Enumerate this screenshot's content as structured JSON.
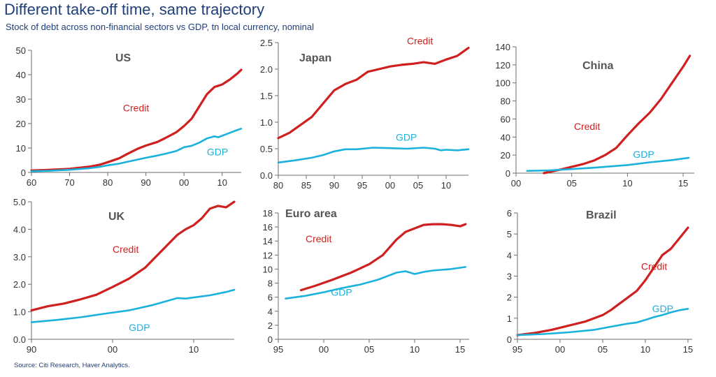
{
  "title": "Different take-off time, same trajectory",
  "subtitle": "Stock of debt across non-financial sectors vs GDP, tn local currency, nominal",
  "source": "Source: Citi Research, Haver Analytics.",
  "colors": {
    "credit": "#d01f1f",
    "gdp": "#1ab2dc"
  },
  "chart_data": [
    {
      "type": "line",
      "title": "US",
      "xlim": [
        1960,
        2015
      ],
      "ylim": [
        0,
        50
      ],
      "xticks": [
        1960,
        1970,
        1980,
        1990,
        2000,
        2010
      ],
      "xticklabels": [
        "60",
        "70",
        "80",
        "90",
        "00",
        "10"
      ],
      "yticks": [
        0,
        10,
        20,
        30,
        40,
        50
      ],
      "yticklabels": [
        "0",
        "10",
        "20",
        "30",
        "40",
        "50"
      ],
      "series": [
        {
          "name": "Credit",
          "x": [
            1960,
            1965,
            1970,
            1975,
            1978,
            1980,
            1983,
            1985,
            1988,
            1990,
            1993,
            1995,
            1998,
            2000,
            2002,
            2004,
            2006,
            2008,
            2009,
            2010,
            2012,
            2014,
            2015
          ],
          "y": [
            0.8,
            1.1,
            1.5,
            2.3,
            3.2,
            4.2,
            5.8,
            7.5,
            9.8,
            11,
            12.5,
            14,
            16.5,
            19,
            22,
            27,
            32,
            35,
            35.5,
            36,
            38,
            40.5,
            42
          ]
        },
        {
          "name": "GDP",
          "x": [
            1960,
            1965,
            1970,
            1975,
            1978,
            1980,
            1983,
            1985,
            1988,
            1990,
            1993,
            1995,
            1998,
            2000,
            2002,
            2004,
            2006,
            2008,
            2009,
            2010,
            2012,
            2014,
            2015
          ],
          "y": [
            0.5,
            0.7,
            1.1,
            1.7,
            2.3,
            2.9,
            3.6,
            4.3,
            5.3,
            6,
            6.9,
            7.6,
            8.8,
            10.3,
            10.9,
            12.2,
            13.9,
            14.8,
            14.4,
            15,
            16.2,
            17.4,
            17.9
          ]
        }
      ]
    },
    {
      "type": "line",
      "title": "Japan",
      "xlim": [
        1980,
        2014
      ],
      "ylim": [
        0,
        2.5
      ],
      "xticks": [
        1980,
        1985,
        1990,
        1995,
        2000,
        2005,
        2010
      ],
      "xticklabels": [
        "80",
        "85",
        "90",
        "95",
        "00",
        "05",
        "10"
      ],
      "yticks": [
        0,
        0.5,
        1,
        1.5,
        2,
        2.5
      ],
      "yticklabels": [
        "0.0",
        "0.5",
        "1.0",
        "1.5",
        "2.0",
        "2.5"
      ],
      "series": [
        {
          "name": "Credit",
          "x": [
            1980,
            1982,
            1984,
            1986,
            1988,
            1990,
            1992,
            1994,
            1996,
            1998,
            2000,
            2002,
            2004,
            2006,
            2008,
            2010,
            2012,
            2014
          ],
          "y": [
            0.7,
            0.8,
            0.95,
            1.1,
            1.35,
            1.6,
            1.72,
            1.8,
            1.95,
            2.0,
            2.05,
            2.08,
            2.1,
            2.13,
            2.1,
            2.18,
            2.25,
            2.4
          ]
        },
        {
          "name": "GDP",
          "x": [
            1980,
            1983,
            1986,
            1988,
            1990,
            1992,
            1994,
            1997,
            2000,
            2003,
            2006,
            2008,
            2009,
            2010,
            2012,
            2014
          ],
          "y": [
            0.24,
            0.28,
            0.33,
            0.38,
            0.45,
            0.49,
            0.49,
            0.52,
            0.51,
            0.5,
            0.52,
            0.5,
            0.47,
            0.48,
            0.47,
            0.49
          ]
        }
      ]
    },
    {
      "type": "line",
      "title": "China",
      "xlim": [
        2000,
        2016
      ],
      "ylim": [
        0,
        140
      ],
      "xticks": [
        2000,
        2005,
        2010,
        2015
      ],
      "xticklabels": [
        "00",
        "05",
        "10",
        "15"
      ],
      "yticks": [
        0,
        20,
        40,
        60,
        80,
        100,
        120,
        140
      ],
      "yticklabels": [
        "0",
        "20",
        "40",
        "60",
        "80",
        "100",
        "120",
        "140"
      ],
      "series": [
        {
          "name": "Credit",
          "x": [
            2002.5,
            2004,
            2005,
            2006,
            2007,
            2008,
            2009,
            2010,
            2011,
            2012,
            2013,
            2014,
            2015,
            2015.6
          ],
          "y": [
            0,
            4,
            7,
            10,
            14,
            20,
            28,
            42,
            55,
            67,
            82,
            100,
            118,
            130
          ]
        },
        {
          "name": "GDP",
          "x": [
            2001,
            2003,
            2005,
            2007,
            2009,
            2010,
            2012,
            2014,
            2015.5
          ],
          "y": [
            2.5,
            3,
            4.5,
            6,
            8,
            9,
            12,
            14.5,
            17
          ]
        }
      ]
    },
    {
      "type": "line",
      "title": "UK",
      "xlim": [
        1990,
        2015
      ],
      "ylim": [
        0,
        5
      ],
      "xticks": [
        1990,
        2000,
        2010
      ],
      "xticklabels": [
        "90",
        "00",
        "10"
      ],
      "yticks": [
        0,
        1,
        2,
        3,
        4,
        5
      ],
      "yticklabels": [
        "0.0",
        "1.0",
        "2.0",
        "3.0",
        "4.0",
        "5.0"
      ],
      "series": [
        {
          "name": "Credit",
          "x": [
            1990,
            1992,
            1994,
            1996,
            1998,
            2000,
            2002,
            2004,
            2006,
            2008,
            2009,
            2010,
            2011,
            2012,
            2013,
            2014,
            2015
          ],
          "y": [
            1.05,
            1.2,
            1.3,
            1.45,
            1.62,
            1.9,
            2.2,
            2.6,
            3.2,
            3.8,
            4.0,
            4.15,
            4.4,
            4.75,
            4.85,
            4.8,
            5.0
          ]
        },
        {
          "name": "GDP",
          "x": [
            1990,
            1993,
            1996,
            1999,
            2002,
            2005,
            2008,
            2009,
            2010,
            2012,
            2014,
            2015
          ],
          "y": [
            0.62,
            0.7,
            0.8,
            0.93,
            1.05,
            1.25,
            1.5,
            1.48,
            1.52,
            1.6,
            1.72,
            1.8
          ]
        }
      ]
    },
    {
      "type": "line",
      "title": "Euro area",
      "xlim": [
        1995,
        2016
      ],
      "ylim": [
        0,
        18
      ],
      "xticks": [
        1995,
        2000,
        2005,
        2010,
        2015
      ],
      "xticklabels": [
        "95",
        "00",
        "05",
        "10",
        "15"
      ],
      "yticks": [
        0,
        2,
        4,
        6,
        8,
        10,
        12,
        14,
        16,
        18
      ],
      "yticklabels": [
        "0",
        "2",
        "4",
        "6",
        "8",
        "10",
        "12",
        "14",
        "16",
        "18"
      ],
      "series": [
        {
          "name": "Credit",
          "x": [
            1997.5,
            1999,
            2001,
            2003,
            2005,
            2006.5,
            2008,
            2009,
            2010,
            2011,
            2012,
            2013,
            2014,
            2015,
            2015.6
          ],
          "y": [
            7,
            7.6,
            8.5,
            9.5,
            10.7,
            12,
            14.2,
            15.3,
            15.8,
            16.3,
            16.4,
            16.4,
            16.3,
            16.1,
            16.4
          ]
        },
        {
          "name": "GDP",
          "x": [
            1995.8,
            1998,
            2000,
            2002,
            2004,
            2006,
            2008,
            2009,
            2010,
            2011,
            2012,
            2014,
            2015.6
          ],
          "y": [
            5.8,
            6.2,
            6.7,
            7.3,
            7.8,
            8.5,
            9.5,
            9.7,
            9.3,
            9.6,
            9.8,
            10,
            10.3
          ]
        }
      ]
    },
    {
      "type": "line",
      "title": "Brazil",
      "xlim": [
        1995,
        2015.5
      ],
      "ylim": [
        0,
        6
      ],
      "xticks": [
        1995,
        2000,
        2005,
        2010,
        2015
      ],
      "xticklabels": [
        "95",
        "00",
        "05",
        "10",
        "15"
      ],
      "yticks": [
        0,
        1,
        2,
        3,
        4,
        5,
        6
      ],
      "yticklabels": [
        "0",
        "1",
        "2",
        "3",
        "4",
        "5",
        "6"
      ],
      "series": [
        {
          "name": "Credit",
          "x": [
            1995,
            1997,
            1999,
            2001,
            2003,
            2005,
            2006,
            2007,
            2008,
            2009,
            2010,
            2011,
            2012,
            2013,
            2014,
            2015
          ],
          "y": [
            0.2,
            0.3,
            0.45,
            0.65,
            0.85,
            1.15,
            1.4,
            1.7,
            2.0,
            2.3,
            2.8,
            3.4,
            4.0,
            4.3,
            4.8,
            5.3
          ]
        },
        {
          "name": "GDP",
          "x": [
            1995,
            1998,
            2001,
            2004,
            2006,
            2008,
            2009,
            2010,
            2011,
            2012,
            2013,
            2014,
            2015
          ],
          "y": [
            0.2,
            0.25,
            0.33,
            0.45,
            0.6,
            0.75,
            0.8,
            0.92,
            1.05,
            1.15,
            1.28,
            1.38,
            1.45
          ]
        }
      ]
    }
  ]
}
